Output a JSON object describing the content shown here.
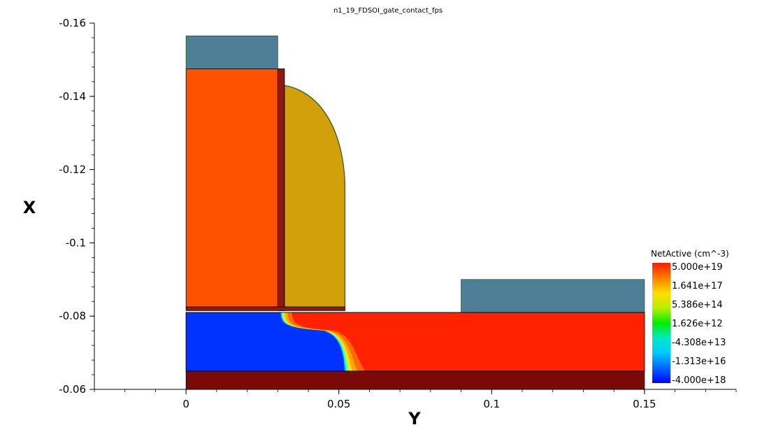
{
  "chart_data": {
    "type": "heatmap",
    "title": "n1_19_FDSOI_gate_contact_fps",
    "xlabel": "Y",
    "ylabel": "X",
    "xlim": [
      -0.03,
      0.18
    ],
    "ylim": [
      -0.06,
      -0.16
    ],
    "x_ticks": [
      {
        "value": 0,
        "label": "0"
      },
      {
        "value": 0.05,
        "label": "0.05"
      },
      {
        "value": 0.1,
        "label": "0.1"
      },
      {
        "value": 0.15,
        "label": "0.15"
      }
    ],
    "y_ticks": [
      {
        "value": -0.16,
        "label": "-0.16"
      },
      {
        "value": -0.14,
        "label": "-0.14"
      },
      {
        "value": -0.12,
        "label": "-0.12"
      },
      {
        "value": -0.1,
        "label": "-0.1"
      },
      {
        "value": -0.08,
        "label": "-0.08"
      },
      {
        "value": -0.06,
        "label": "-0.06"
      }
    ],
    "legend": {
      "title": "NetActive (cm^-3)",
      "placement": "right",
      "colors": [
        "#ff1a00",
        "#ff8000",
        "#ffdd00",
        "#b7f000",
        "#00ee00",
        "#00e8c8",
        "#00c8ff",
        "#0066ff",
        "#0000ff"
      ],
      "labels": [
        "5.000e+19",
        "1.641e+17",
        "5.386e+14",
        "1.626e+12",
        "-4.308e+13",
        "-1.313e+16",
        "-4.000e+18"
      ]
    },
    "regions": [
      {
        "name": "gate contact",
        "color": "#4e7f96",
        "y_range": [
          0,
          0.03
        ],
        "x_range": [
          -0.1565,
          -0.1475
        ]
      },
      {
        "name": "gate",
        "color": "#ff5200",
        "y_range": [
          0,
          0.03
        ],
        "x_range": [
          -0.1475,
          -0.0825
        ]
      },
      {
        "name": "gate liner",
        "color": "#8b1a10",
        "y_range": [
          0.03,
          0.0322
        ],
        "x_range": [
          -0.1475,
          -0.0815
        ]
      },
      {
        "name": "spacer",
        "color": "#d1a00a",
        "y_range": [
          0.0322,
          0.052
        ],
        "x_range": [
          -0.143,
          -0.0825
        ]
      },
      {
        "name": "gate oxide",
        "color": "#8b1a10",
        "y_range": [
          0,
          0.052
        ],
        "x_range": [
          -0.0825,
          -0.0815
        ]
      },
      {
        "name": "source/drain contact",
        "color": "#4e7f96",
        "y_range": [
          0.09,
          0.15
        ],
        "x_range": [
          -0.09,
          -0.081
        ]
      },
      {
        "name": "silicon channel",
        "color": "#0033ff",
        "y_range": [
          0,
          0.15
        ],
        "x_range": [
          -0.081,
          -0.065
        ]
      },
      {
        "name": "buried oxide",
        "color": "#7a0a06",
        "y_range": [
          0,
          0.15
        ],
        "x_range": [
          -0.065,
          -0.06
        ]
      }
    ]
  }
}
